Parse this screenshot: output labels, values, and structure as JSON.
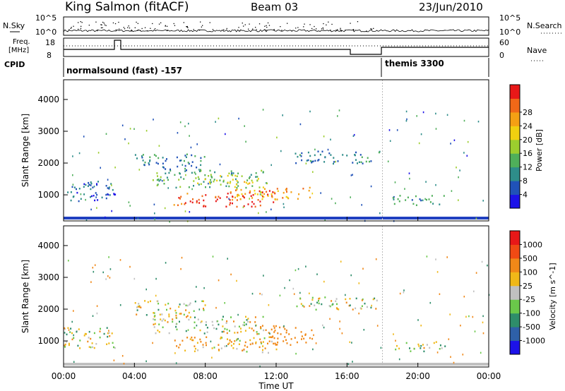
{
  "header": {
    "title": "King Salmon (fitACF)",
    "beam": "Beam 03",
    "date": "23/Jun/2010"
  },
  "noise_panel": {
    "left_label": "N.Sky",
    "right_label": "N.Search",
    "left_ticks": [
      "10^5",
      "10^0"
    ],
    "right_ticks": [
      "10^5",
      "10^0"
    ]
  },
  "freq_panel": {
    "left_label_line1": "Freq.",
    "left_label_line2": "[MHz]",
    "left_ticks": [
      "18",
      "8"
    ],
    "right_label": "Nave",
    "right_ticks": [
      "60",
      "0"
    ]
  },
  "cpid_panel": {
    "label": "CPID",
    "segments": [
      {
        "name": "normalsound (fast) -157",
        "start_hour": 0
      },
      {
        "name": "themis 3300",
        "start_hour": 18
      }
    ]
  },
  "x_axis": {
    "title": "Time UT",
    "ticks": [
      "00:00",
      "04:00",
      "08:00",
      "12:00",
      "16:00",
      "20:00",
      "00:00"
    ]
  },
  "chart_data": [
    {
      "type": "heatmap",
      "name": "power",
      "ylabel": "Slant Range [km]",
      "yticks": [
        "1000",
        "2000",
        "3000",
        "4000"
      ],
      "ylim": [
        180,
        4620
      ],
      "xlim_hours": [
        0,
        24
      ],
      "colorbar_label": "Power [dB]",
      "colorbar_ticks": [
        "4",
        "8",
        "12",
        "16",
        "20",
        "24",
        "28"
      ],
      "colorbar_colors": [
        "#1c12e8",
        "#2052b8",
        "#2e8d8a",
        "#4faf5a",
        "#9ccd2e",
        "#f0d010",
        "#f4a014",
        "#f06818",
        "#e81818"
      ],
      "regions": [
        {
          "t0": 6.2,
          "t1": 12.0,
          "r0": 650,
          "r1": 1150,
          "value": 28
        },
        {
          "t0": 9.5,
          "t1": 14.0,
          "r0": 880,
          "r1": 1300,
          "value": 22
        },
        {
          "t0": 5.0,
          "t1": 11.5,
          "r0": 1250,
          "r1": 1800,
          "value": 12
        },
        {
          "t0": 7.5,
          "t1": 11.0,
          "r0": 1350,
          "r1": 1650,
          "value": 18
        },
        {
          "t0": 4.0,
          "t1": 8.0,
          "r0": 1800,
          "r1": 2300,
          "value": 8
        },
        {
          "t0": 13.0,
          "t1": 18.0,
          "r0": 2000,
          "r1": 2400,
          "value": 8
        },
        {
          "t0": 0.0,
          "t1": 3.0,
          "r0": 800,
          "r1": 1450,
          "value": 6
        },
        {
          "t0": 18.5,
          "t1": 21.5,
          "r0": 700,
          "r1": 1000,
          "value": 10
        }
      ]
    },
    {
      "type": "heatmap",
      "name": "velocity",
      "ylabel": "Slant Range [km]",
      "yticks": [
        "1000",
        "2000",
        "3000",
        "4000"
      ],
      "ylim": [
        180,
        4620
      ],
      "xlim_hours": [
        0,
        24
      ],
      "colorbar_label": "Velocity [m s^-1]",
      "colorbar_ticks": [
        "1000",
        "500",
        "100",
        "25",
        "-25",
        "-100",
        "-500",
        "-1000"
      ],
      "colorbar_colors": [
        "#1c12e8",
        "#2e60a8",
        "#2e8d6a",
        "#6ac84a",
        "#c0c0c0",
        "#f0b818",
        "#f08818",
        "#f04a14",
        "#e81818"
      ],
      "regions": [
        {
          "t0": 6.2,
          "t1": 12.0,
          "r0": 650,
          "r1": 1150,
          "value": -100
        },
        {
          "t0": 10.5,
          "t1": 14.0,
          "r0": 900,
          "r1": 1500,
          "value": -300
        },
        {
          "t0": 5.0,
          "t1": 11.5,
          "r0": 1250,
          "r1": 1800,
          "value": 0
        },
        {
          "t0": 4.0,
          "t1": 8.0,
          "r0": 1800,
          "r1": 2300,
          "value": 0
        },
        {
          "t0": 13.0,
          "t1": 18.0,
          "r0": 2000,
          "r1": 2400,
          "value": 0
        },
        {
          "t0": 0.0,
          "t1": 3.0,
          "r0": 800,
          "r1": 1450,
          "value": 0
        },
        {
          "t0": 18.5,
          "t1": 21.5,
          "r0": 700,
          "r1": 1000,
          "value": 0
        }
      ]
    }
  ]
}
